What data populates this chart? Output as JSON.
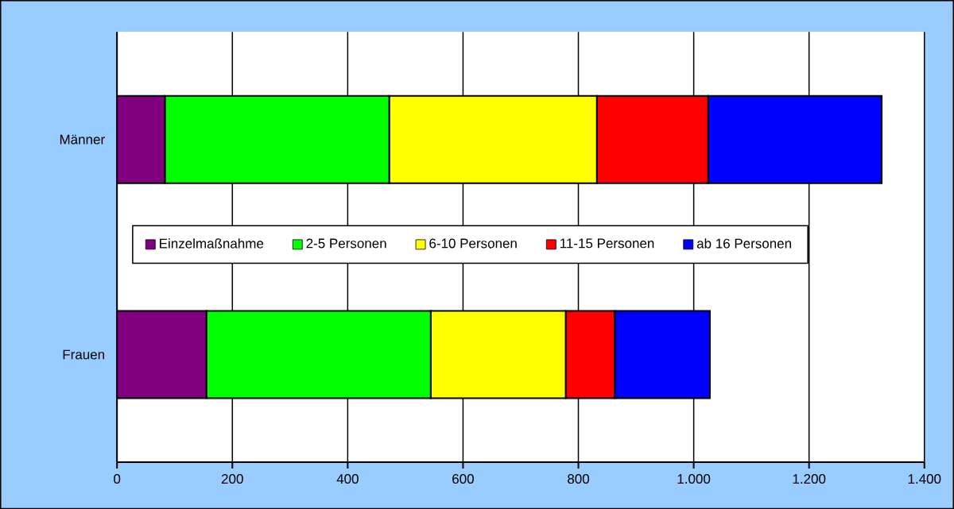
{
  "chart_data": {
    "type": "bar",
    "orientation": "horizontal",
    "stacked": true,
    "categories": [
      "Männer",
      "Frauen"
    ],
    "series": [
      {
        "name": "Einzelmaßnahme",
        "color": "#800080",
        "values": [
          83,
          155
        ]
      },
      {
        "name": "2-5 Personen",
        "color": "#00ff00",
        "values": [
          389,
          389
        ]
      },
      {
        "name": "6-10 Personen",
        "color": "#ffff00",
        "values": [
          360,
          234
        ]
      },
      {
        "name": "11-15 Personen",
        "color": "#ff0000",
        "values": [
          193,
          85
        ]
      },
      {
        "name": "ab 16 Personen",
        "color": "#0000ff",
        "values": [
          301,
          165
        ]
      }
    ],
    "xlim": [
      0,
      1400
    ],
    "xticks": [
      0,
      200,
      400,
      600,
      800,
      {
        "value": 1000,
        "label": "1.000"
      },
      {
        "value": 1200,
        "label": "1.200"
      },
      {
        "value": 1400,
        "label": "1.400"
      }
    ],
    "grid": "x",
    "legend": "center"
  }
}
